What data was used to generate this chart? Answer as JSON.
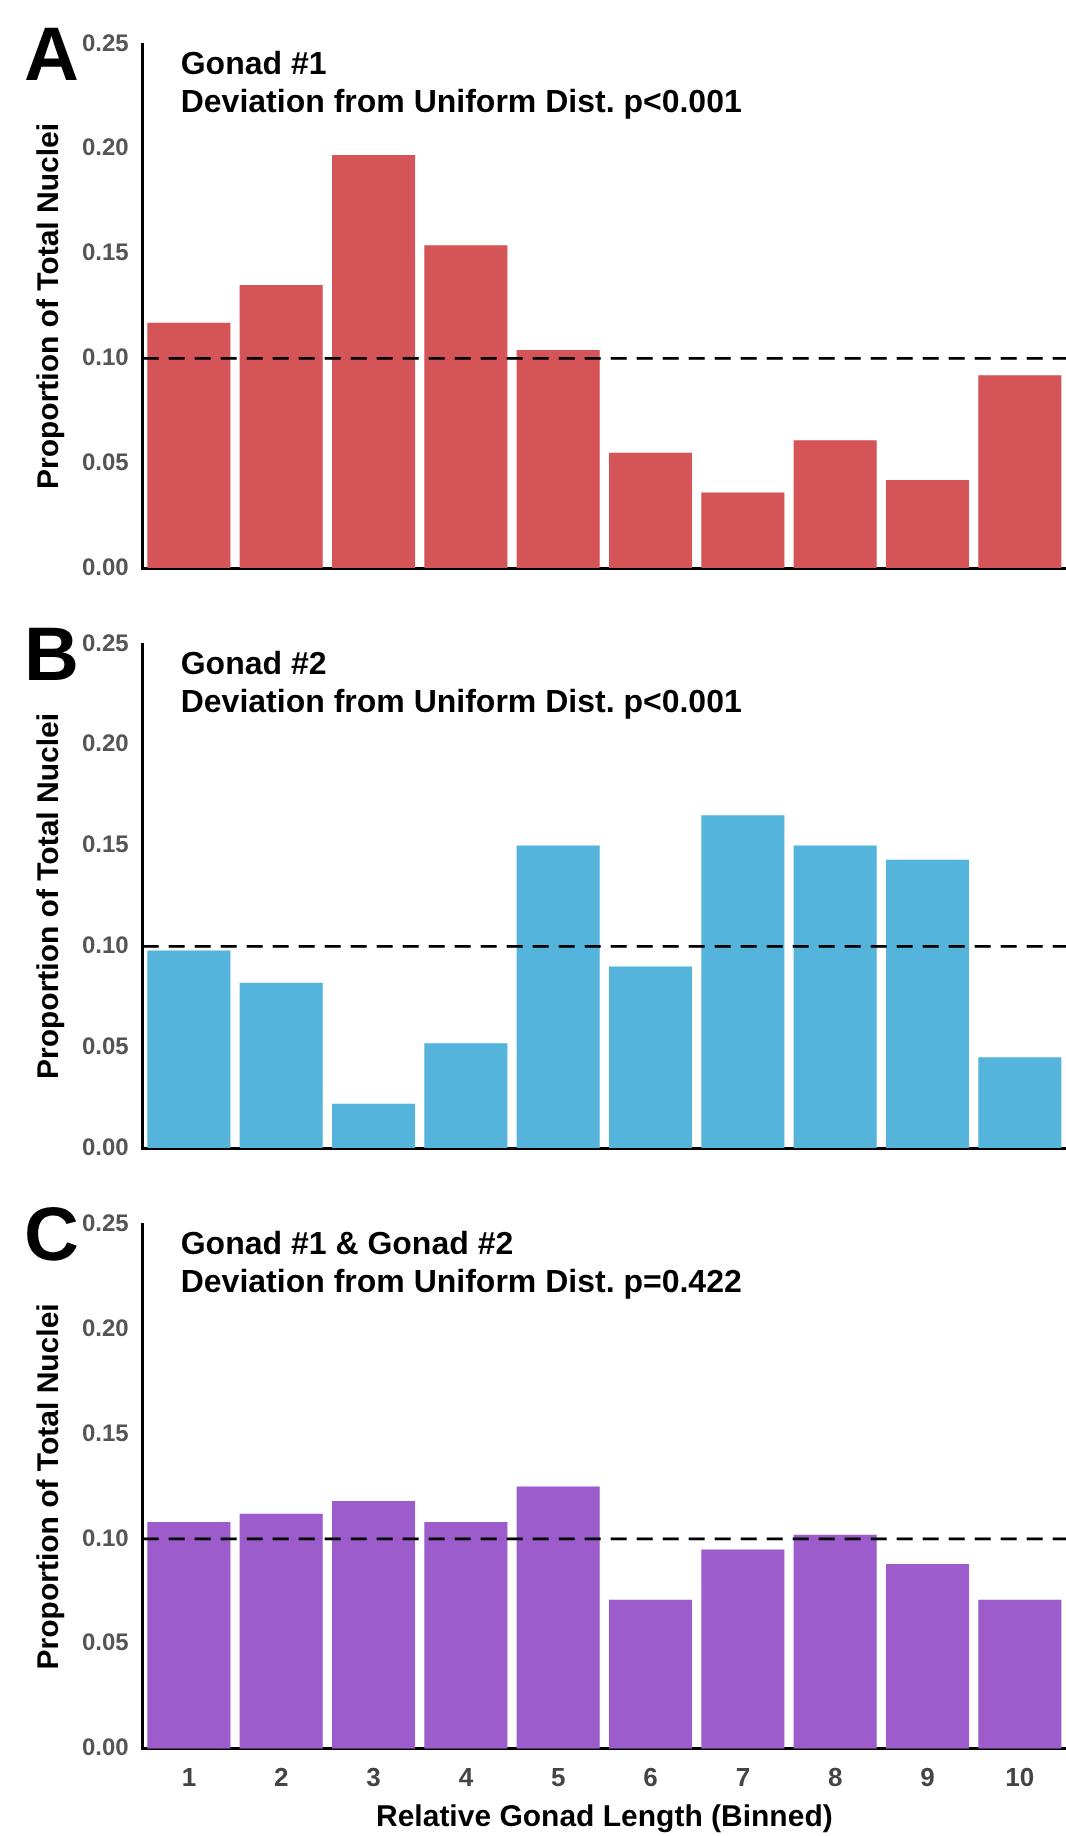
{
  "chart_data": [
    {
      "type": "bar",
      "title": "Gonad #1",
      "subtitle": "Deviation from Uniform Dist. p<0.001",
      "annotations": [
        "A"
      ],
      "ylabel": "Proportion of Total Nuclei",
      "categories": [
        "1",
        "2",
        "3",
        "4",
        "5",
        "6",
        "7",
        "8",
        "9",
        "10"
      ],
      "values": [
        0.117,
        0.135,
        0.197,
        0.154,
        0.104,
        0.055,
        0.036,
        0.061,
        0.042,
        0.092
      ],
      "color": "#d55458",
      "ylim": [
        0,
        0.25
      ],
      "yticks": [
        {
          "value": 0,
          "label": "0.00"
        },
        {
          "value": 0.05,
          "label": "0.05"
        },
        {
          "value": 0.1,
          "label": "0.10"
        },
        {
          "value": 0.15,
          "label": "0.15"
        },
        {
          "value": 0.2,
          "label": "0.20"
        },
        {
          "value": 0.25,
          "label": "0.25"
        }
      ],
      "ref_lines": [
        {
          "axis": "y",
          "value": 0.1,
          "line_style": "dashed",
          "color": "#000000"
        }
      ],
      "grid": false,
      "legend": false,
      "tick_labels": "y"
    },
    {
      "type": "bar",
      "title": "Gonad #2",
      "subtitle": "Deviation from Uniform Dist. p<0.001",
      "annotations": [
        "B"
      ],
      "ylabel": "Proportion of Total Nuclei",
      "categories": [
        "1",
        "2",
        "3",
        "4",
        "5",
        "6",
        "7",
        "8",
        "9",
        "10"
      ],
      "values": [
        0.098,
        0.082,
        0.022,
        0.052,
        0.15,
        0.09,
        0.165,
        0.15,
        0.143,
        0.045
      ],
      "color": "#54b4dc",
      "ylim": [
        0,
        0.25
      ],
      "yticks": [
        {
          "value": 0,
          "label": "0.00"
        },
        {
          "value": 0.05,
          "label": "0.05"
        },
        {
          "value": 0.1,
          "label": "0.10"
        },
        {
          "value": 0.15,
          "label": "0.15"
        },
        {
          "value": 0.2,
          "label": "0.20"
        },
        {
          "value": 0.25,
          "label": "0.25"
        }
      ],
      "ref_lines": [
        {
          "axis": "y",
          "value": 0.1,
          "line_style": "dashed",
          "color": "#000000"
        }
      ],
      "grid": false,
      "legend": false,
      "tick_labels": "y"
    },
    {
      "type": "bar",
      "title": "Gonad #1 & Gonad #2",
      "subtitle": "Deviation from Uniform Dist. p=0.422",
      "annotations": [
        "C"
      ],
      "ylabel": "Proportion of Total Nuclei",
      "xlabel": "Relative Gonad Length (Binned)",
      "categories": [
        "1",
        "2",
        "3",
        "4",
        "5",
        "6",
        "7",
        "8",
        "9",
        "10"
      ],
      "values": [
        0.108,
        0.112,
        0.118,
        0.108,
        0.125,
        0.071,
        0.095,
        0.102,
        0.088,
        0.071
      ],
      "color": "#9c5ccc",
      "ylim": [
        0,
        0.25
      ],
      "yticks": [
        {
          "value": 0,
          "label": "0.00"
        },
        {
          "value": 0.05,
          "label": "0.05"
        },
        {
          "value": 0.1,
          "label": "0.10"
        },
        {
          "value": 0.15,
          "label": "0.15"
        },
        {
          "value": 0.2,
          "label": "0.20"
        },
        {
          "value": 0.25,
          "label": "0.25"
        }
      ],
      "ref_lines": [
        {
          "axis": "y",
          "value": 0.1,
          "line_style": "dashed",
          "color": "#000000"
        }
      ],
      "grid": false,
      "legend": false
    }
  ]
}
